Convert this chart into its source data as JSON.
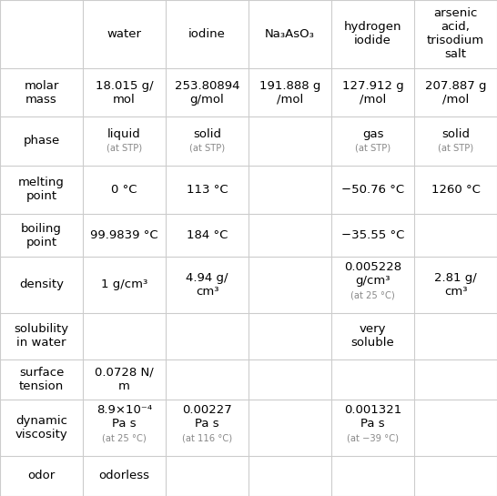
{
  "col_headers": [
    "",
    "water",
    "iodine",
    "Na₃AsO₃",
    "hydrogen\niodide",
    "arsenic\nacid,\ntrisodium\nsalt"
  ],
  "row_headers": [
    "molar\nmass",
    "phase",
    "melting\npoint",
    "boiling\npoint",
    "density",
    "solubility\nin water",
    "surface\ntension",
    "dynamic\nviscosity",
    "odor"
  ],
  "cells": [
    [
      "18.015 g/\nmol",
      "253.80894\ng/mol",
      "191.888 g\n/mol",
      "127.912 g\n/mol",
      "207.887 g\n/mol"
    ],
    [
      "liquid\n(at STP)",
      "solid\n(at STP)",
      "",
      "gas\n(at STP)",
      "solid\n(at STP)"
    ],
    [
      "0 °C",
      "113 °C",
      "",
      "−50.76 °C",
      "1260 °C"
    ],
    [
      "99.9839 °C",
      "184 °C",
      "",
      "−35.55 °C",
      ""
    ],
    [
      "1 g/cm³",
      "4.94 g/\ncm³",
      "",
      "0.005228\ng/cm³\n(at 25 °C)",
      "2.81 g/\ncm³"
    ],
    [
      "",
      "",
      "",
      "very\nsoluble",
      ""
    ],
    [
      "0.0728 N/\nm",
      "",
      "",
      "",
      ""
    ],
    [
      "8.9×10⁻⁴\nPa s\n(at 25 °C)",
      "0.00227\nPa s\n(at 116 °C)",
      "",
      "0.001321\nPa s\n(at −39 °C)",
      ""
    ],
    [
      "odorless",
      "",
      "",
      "",
      ""
    ]
  ],
  "bg_color": "#ffffff",
  "line_color": "#cccccc",
  "text_color": "#000000",
  "small_text_color": "#888888",
  "font_size_header": 9.5,
  "font_size_cell": 9.5,
  "font_size_small": 7.2
}
